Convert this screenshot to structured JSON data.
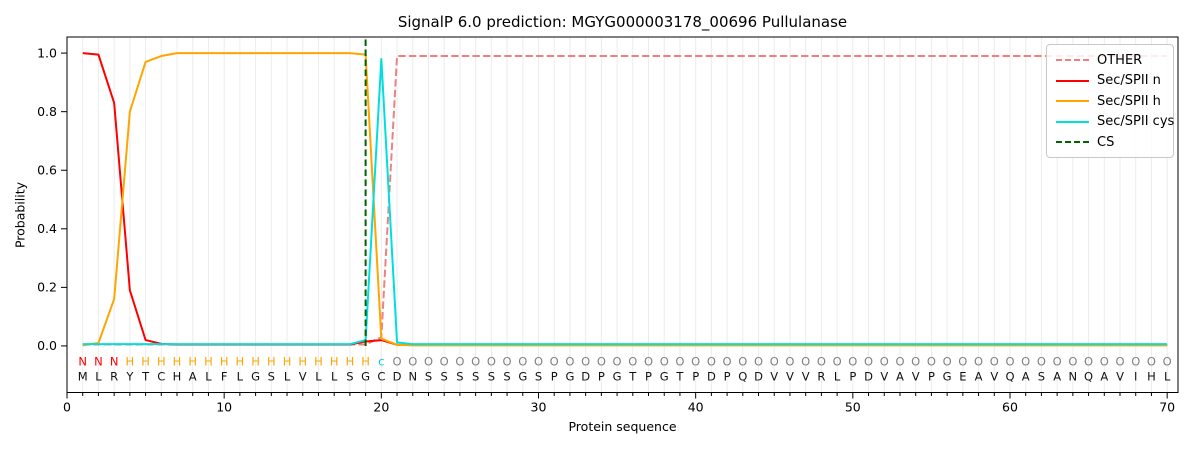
{
  "chart_data": {
    "type": "line",
    "title": "SignalP 6.0 prediction: MGYG000003178_00696 Pullulanase",
    "xlabel": "Protein sequence",
    "ylabel": "Probability",
    "xlim": [
      0,
      70.69
    ],
    "ylim": [
      -0.159,
      1.055
    ],
    "xticks": [
      0,
      10,
      20,
      30,
      40,
      50,
      60,
      70
    ],
    "yticks": [
      0.0,
      0.2,
      0.4,
      0.6,
      0.8,
      1.0
    ],
    "grid": "light vertical gridline at every residue position 1-70",
    "legend_position": "upper right",
    "positions_start": 1,
    "sequence": "MLRYTCHALFLGSLVLLSGCDNSSSSSSGSPGDPGTPGTPDPQDVVVRLPDVAVPGEAVQASANQAVIHL",
    "residue_labels": "NNNHHHHHHHHHHHHHHHHcOOOOOOOOOOOOOOOOOOOOOOOOOOOOOOOOOOOOOOOOOOOOOOOOOO",
    "label_colors": {
      "N": "#ff0000",
      "H": "#ffa500",
      "c": "#00cdd6",
      "O": "#808080"
    },
    "sequence_color": "#111111",
    "grid_color": "#ececec",
    "spine_color": "#000000",
    "series": [
      {
        "name": "OTHER",
        "color": "#f08080",
        "dash": true,
        "values": [
          0.005,
          0.005,
          0.005,
          0.005,
          0.005,
          0.005,
          0.005,
          0.005,
          0.005,
          0.005,
          0.005,
          0.005,
          0.005,
          0.005,
          0.005,
          0.005,
          0.005,
          0.005,
          0.005,
          0.03,
          0.99,
          0.99,
          0.99,
          0.99,
          0.99,
          0.99,
          0.99,
          0.99,
          0.99,
          0.99,
          0.99,
          0.99,
          0.99,
          0.99,
          0.99,
          0.99,
          0.99,
          0.99,
          0.99,
          0.99,
          0.99,
          0.99,
          0.99,
          0.99,
          0.99,
          0.99,
          0.99,
          0.99,
          0.99,
          0.99,
          0.99,
          0.99,
          0.99,
          0.99,
          0.99,
          0.99,
          0.99,
          0.99,
          0.99,
          0.99,
          0.99,
          0.99,
          0.99,
          0.99,
          0.99,
          0.99,
          0.99,
          0.99,
          0.99,
          0.99
        ]
      },
      {
        "name": "Sec/SPII n",
        "color": "#ff0000",
        "dash": false,
        "values": [
          1.0,
          0.995,
          0.83,
          0.19,
          0.02,
          0.007,
          0.005,
          0.005,
          0.005,
          0.005,
          0.005,
          0.005,
          0.005,
          0.005,
          0.005,
          0.005,
          0.005,
          0.005,
          0.015,
          0.02,
          0.004,
          0.003,
          0.003,
          0.003,
          0.003,
          0.003,
          0.003,
          0.003,
          0.003,
          0.003,
          0.003,
          0.003,
          0.003,
          0.003,
          0.003,
          0.003,
          0.003,
          0.003,
          0.003,
          0.003,
          0.003,
          0.003,
          0.003,
          0.003,
          0.003,
          0.003,
          0.003,
          0.003,
          0.003,
          0.003,
          0.003,
          0.003,
          0.003,
          0.003,
          0.003,
          0.003,
          0.003,
          0.003,
          0.003,
          0.003,
          0.003,
          0.003,
          0.003,
          0.003,
          0.003,
          0.003,
          0.003,
          0.003,
          0.003,
          0.003
        ]
      },
      {
        "name": "Sec/SPII h",
        "color": "#ffa500",
        "dash": false,
        "values": [
          0.002,
          0.01,
          0.16,
          0.8,
          0.97,
          0.99,
          1.0,
          1.0,
          1.0,
          1.0,
          1.0,
          1.0,
          1.0,
          1.0,
          1.0,
          1.0,
          1.0,
          1.0,
          0.995,
          0.025,
          0.004,
          0.002,
          0.002,
          0.002,
          0.002,
          0.002,
          0.002,
          0.002,
          0.002,
          0.002,
          0.002,
          0.002,
          0.002,
          0.002,
          0.002,
          0.002,
          0.002,
          0.002,
          0.002,
          0.002,
          0.002,
          0.002,
          0.002,
          0.002,
          0.002,
          0.002,
          0.002,
          0.002,
          0.002,
          0.002,
          0.002,
          0.002,
          0.002,
          0.002,
          0.002,
          0.002,
          0.002,
          0.002,
          0.002,
          0.002,
          0.002,
          0.002,
          0.002,
          0.002,
          0.002,
          0.002,
          0.002,
          0.002,
          0.002,
          0.002
        ]
      },
      {
        "name": "Sec/SPII cys",
        "color": "#00dfdf",
        "dash": false,
        "values": [
          0.006,
          0.006,
          0.006,
          0.006,
          0.006,
          0.006,
          0.006,
          0.006,
          0.006,
          0.006,
          0.006,
          0.006,
          0.006,
          0.006,
          0.006,
          0.006,
          0.006,
          0.006,
          0.02,
          0.98,
          0.012,
          0.006,
          0.006,
          0.006,
          0.006,
          0.006,
          0.006,
          0.006,
          0.006,
          0.006,
          0.006,
          0.006,
          0.006,
          0.006,
          0.006,
          0.006,
          0.006,
          0.006,
          0.006,
          0.006,
          0.006,
          0.006,
          0.006,
          0.006,
          0.006,
          0.006,
          0.006,
          0.006,
          0.006,
          0.006,
          0.006,
          0.006,
          0.006,
          0.006,
          0.006,
          0.006,
          0.006,
          0.006,
          0.006,
          0.006,
          0.006,
          0.006,
          0.006,
          0.006,
          0.006,
          0.006,
          0.006,
          0.006,
          0.006,
          0.006
        ]
      }
    ],
    "markers": [
      {
        "name": "CS",
        "type": "vline",
        "x": 19,
        "y_from": 0.0,
        "y_to": 1.055,
        "color": "#006400",
        "dash": true
      }
    ],
    "legend": {
      "entries": [
        {
          "label": "OTHER",
          "color": "#f08080",
          "dash": true
        },
        {
          "label": "Sec/SPII n",
          "color": "#ff0000",
          "dash": false
        },
        {
          "label": "Sec/SPII h",
          "color": "#ffa500",
          "dash": false
        },
        {
          "label": "Sec/SPII cys",
          "color": "#00dfdf",
          "dash": false
        },
        {
          "label": "CS",
          "color": "#006400",
          "dash": true
        }
      ]
    }
  }
}
